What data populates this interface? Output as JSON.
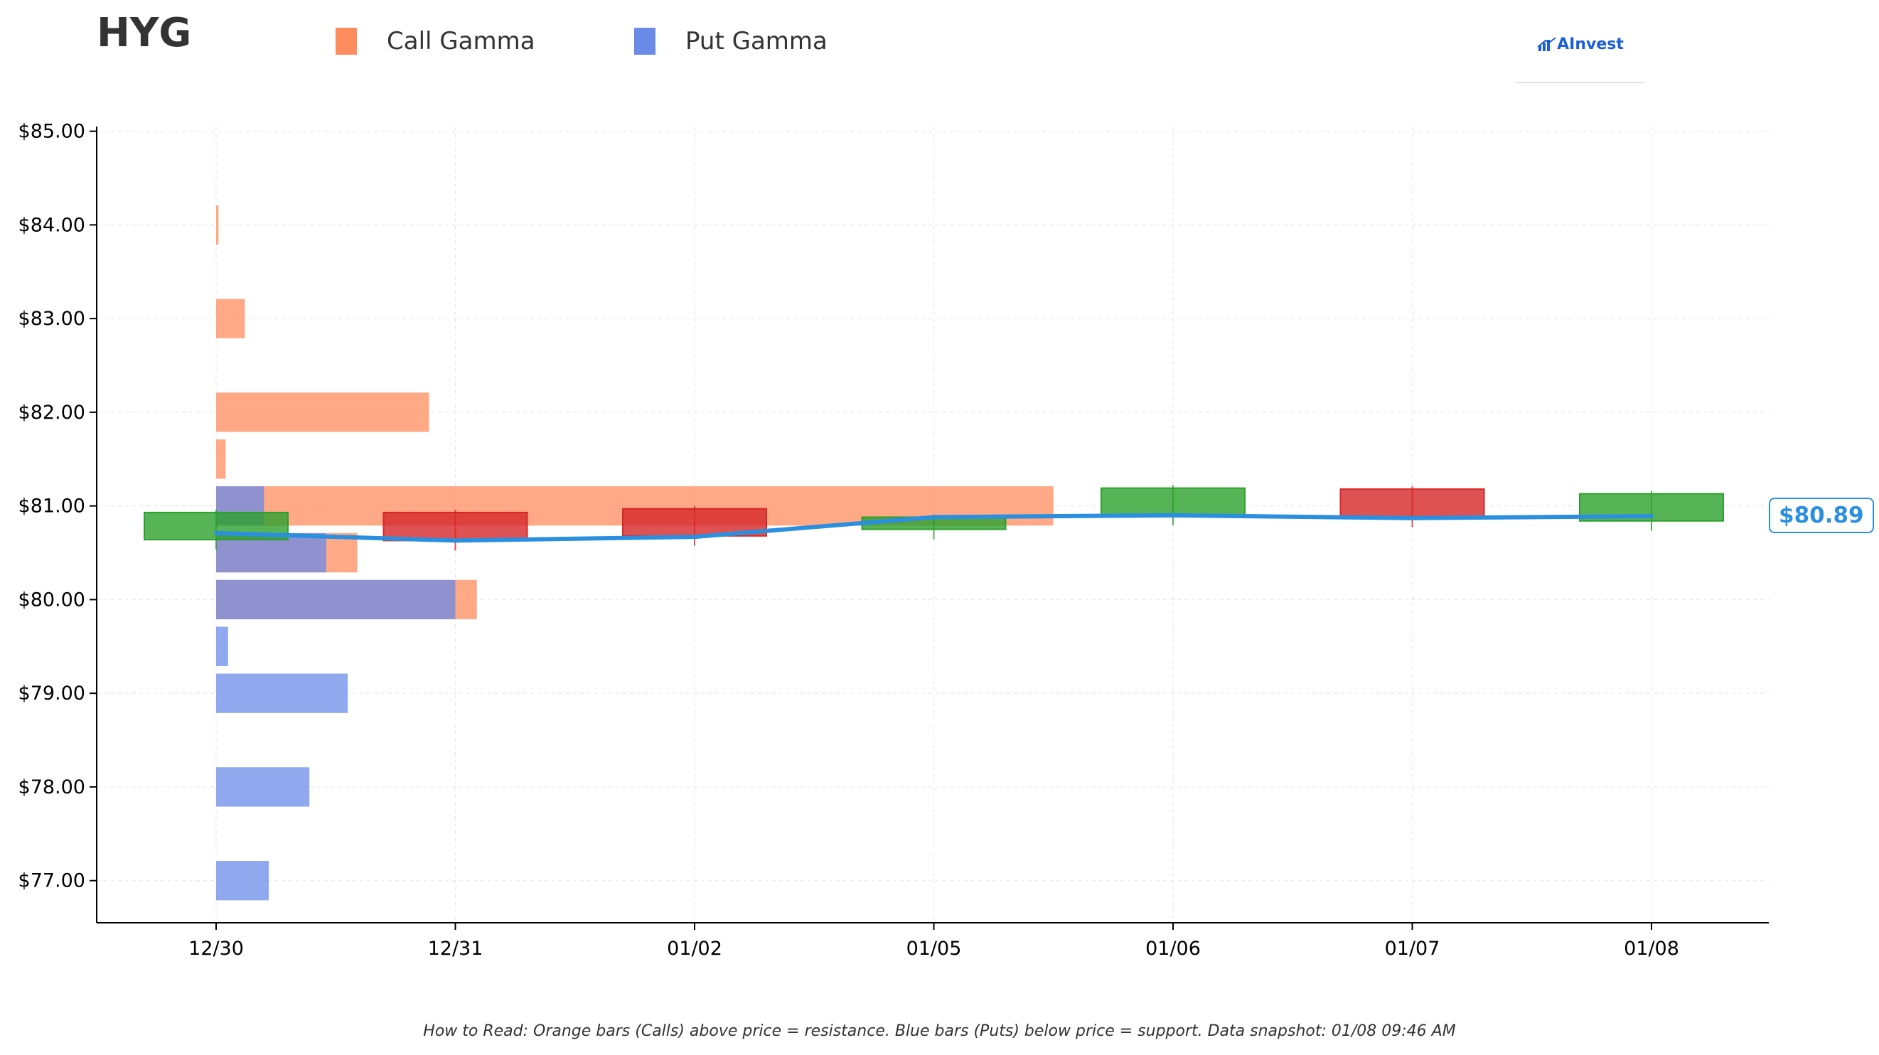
{
  "header": {
    "ticker": "HYG",
    "brand": "AInvest"
  },
  "legend": [
    {
      "label": "Call Gamma",
      "color": "#ff8c5f"
    },
    {
      "label": "Put Gamma",
      "color": "#6b8be8"
    }
  ],
  "footnote": "How to Read: Orange bars (Calls) above price = resistance. Blue bars (Puts) below price = support. Data snapshot: 01/08 09:46 AM",
  "price_tag": "$80.89",
  "colors": {
    "call": "#ff8c5f",
    "put": "#6b8be8",
    "up": "#2ca02c",
    "down": "#d62728",
    "line": "#2b8fe0"
  },
  "chart_data": {
    "type": "bar",
    "title": "",
    "xlabel": "",
    "ylabel": "",
    "x_categories": [
      "12/30",
      "12/31",
      "01/02",
      "01/05",
      "01/06",
      "01/07",
      "01/08"
    ],
    "y_ticks": [
      77,
      78,
      79,
      80,
      81,
      82,
      83,
      84,
      85
    ],
    "y_tick_labels": [
      "$77.00",
      "$78.00",
      "$79.00",
      "$80.00",
      "$81.00",
      "$82.00",
      "$83.00",
      "$84.00",
      "$85.00"
    ],
    "ylim": [
      76.55,
      85.05
    ],
    "grid": true,
    "gamma_x_unit": "category index offset from 12/30",
    "call_gamma": [
      {
        "strike": 84.0,
        "value": 0.01
      },
      {
        "strike": 83.0,
        "value": 0.12
      },
      {
        "strike": 82.0,
        "value": 0.89
      },
      {
        "strike": 81.5,
        "value": 0.04
      },
      {
        "strike": 81.0,
        "value": 3.5
      },
      {
        "strike": 80.5,
        "value": 0.59
      },
      {
        "strike": 80.0,
        "value": 1.09
      }
    ],
    "put_gamma": [
      {
        "strike": 81.0,
        "value": 0.2
      },
      {
        "strike": 80.5,
        "value": 0.46
      },
      {
        "strike": 80.0,
        "value": 1.0
      },
      {
        "strike": 79.5,
        "value": 0.05
      },
      {
        "strike": 79.0,
        "value": 0.55
      },
      {
        "strike": 78.0,
        "value": 0.39
      },
      {
        "strike": 77.0,
        "value": 0.22
      }
    ],
    "candles": [
      {
        "date": "12/30",
        "open": 80.64,
        "close": 80.93,
        "direction": "up"
      },
      {
        "date": "12/31",
        "open": 80.93,
        "close": 80.63,
        "direction": "down"
      },
      {
        "date": "01/02",
        "open": 80.97,
        "close": 80.68,
        "direction": "down"
      },
      {
        "date": "01/05",
        "open": 80.75,
        "close": 80.88,
        "direction": "up"
      },
      {
        "date": "01/06",
        "open": 80.9,
        "close": 81.19,
        "direction": "up"
      },
      {
        "date": "01/07",
        "open": 81.18,
        "close": 80.88,
        "direction": "down"
      },
      {
        "date": "01/08",
        "open": 80.84,
        "close": 81.13,
        "direction": "up"
      }
    ],
    "price_line": [
      {
        "date": "12/30",
        "price": 80.71
      },
      {
        "date": "12/31",
        "price": 80.63
      },
      {
        "date": "01/02",
        "price": 80.67
      },
      {
        "date": "01/05",
        "price": 80.88
      },
      {
        "date": "01/06",
        "price": 80.9
      },
      {
        "date": "01/07",
        "price": 80.87
      },
      {
        "date": "01/08",
        "price": 80.89
      }
    ]
  }
}
